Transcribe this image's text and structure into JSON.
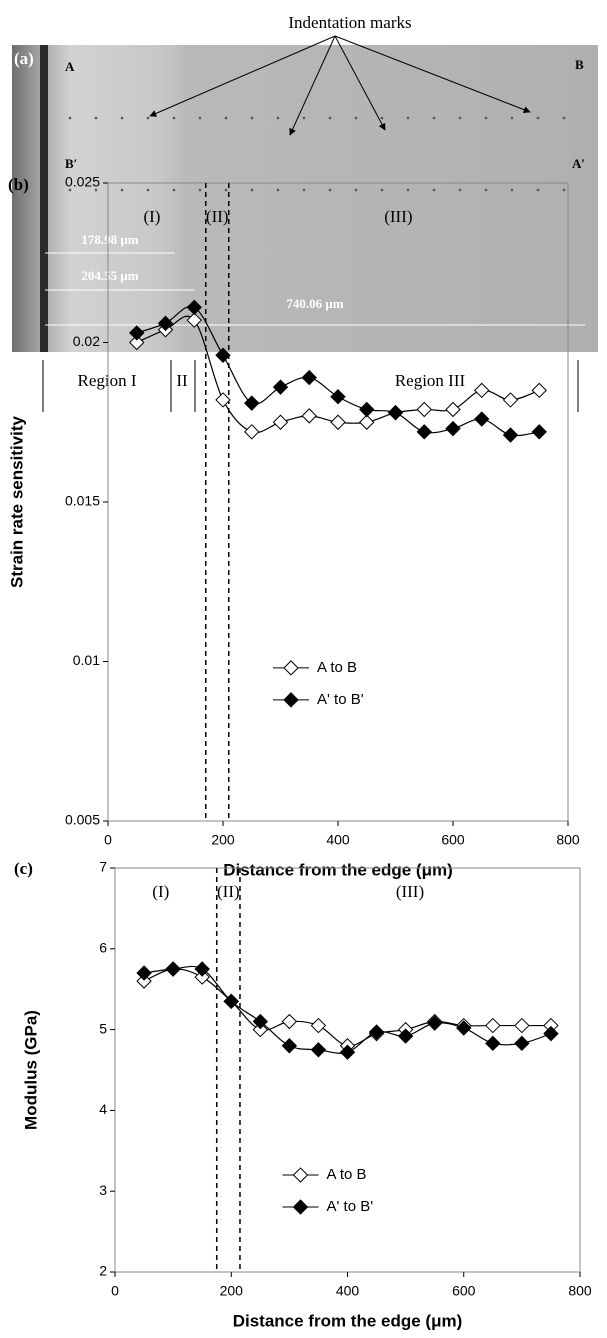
{
  "micrograph": {
    "callout": "Indentation marks",
    "panel_label": "(a)",
    "corner_labels": [
      "A",
      "B",
      "B′",
      "A′"
    ],
    "measurements": [
      "178.98 μm",
      "204.55 μm",
      "740.06 μm"
    ],
    "regions": [
      "Region I",
      "II",
      "Region III"
    ]
  },
  "chart_data": [
    {
      "type": "line",
      "panel_label": "(b)",
      "y_label": "Strain rate sensitivity",
      "x_label": "Distance from the edge (μm)",
      "x": [
        50,
        100,
        150,
        200,
        250,
        300,
        350,
        400,
        450,
        500,
        550,
        600,
        650,
        700,
        750
      ],
      "series": [
        {
          "name": "A to B",
          "color": "#000000",
          "marker": "open-diamond",
          "values": [
            0.02,
            0.0204,
            0.0207,
            0.0182,
            0.0172,
            0.0175,
            0.0177,
            0.0175,
            0.0175,
            0.0178,
            0.0179,
            0.0179,
            0.0185,
            0.0182,
            0.0185
          ]
        },
        {
          "name": "A' to B'",
          "color": "#000000",
          "marker": "filled-diamond",
          "values": [
            0.0203,
            0.0206,
            0.0211,
            0.0196,
            0.0181,
            0.0186,
            0.0189,
            0.0183,
            0.0179,
            0.0178,
            0.0172,
            0.0173,
            0.0176,
            0.0171,
            0.0172
          ]
        }
      ],
      "boundaries": [
        170,
        210
      ],
      "region_labels": [
        "(I)",
        "(II)",
        "(III)"
      ],
      "xlim": [
        0,
        800
      ],
      "xticks": [
        0,
        200,
        400,
        600,
        800
      ],
      "ylim": [
        0.005,
        0.025
      ],
      "yticks": [
        0.005,
        0.01,
        0.015,
        0.02,
        0.025
      ],
      "legend": "lower-center"
    },
    {
      "type": "line",
      "panel_label": "(c)",
      "y_label": "Modulus (GPa)",
      "x_label": "Distance from the edge (μm)",
      "x": [
        50,
        100,
        150,
        200,
        250,
        300,
        350,
        400,
        450,
        500,
        550,
        600,
        650,
        700,
        750
      ],
      "series": [
        {
          "name": "A to B",
          "color": "#000000",
          "marker": "open-diamond",
          "values": [
            5.6,
            5.75,
            5.65,
            5.35,
            5.0,
            5.1,
            5.05,
            4.8,
            4.95,
            5.0,
            5.1,
            5.05,
            5.05,
            5.05,
            5.05
          ]
        },
        {
          "name": "A' to B'",
          "color": "#000000",
          "marker": "filled-diamond",
          "values": [
            5.7,
            5.75,
            5.75,
            5.35,
            5.1,
            4.8,
            4.75,
            4.72,
            4.97,
            4.92,
            5.08,
            5.02,
            4.83,
            4.83,
            4.95
          ]
        }
      ],
      "boundaries": [
        175,
        215
      ],
      "region_labels": [
        "(I)",
        "(II)",
        "(III)"
      ],
      "xlim": [
        0,
        800
      ],
      "xticks": [
        0,
        200,
        400,
        600,
        800
      ],
      "ylim": [
        2,
        7
      ],
      "yticks": [
        2,
        3,
        4,
        5,
        6,
        7
      ],
      "legend": "lower-center"
    }
  ]
}
